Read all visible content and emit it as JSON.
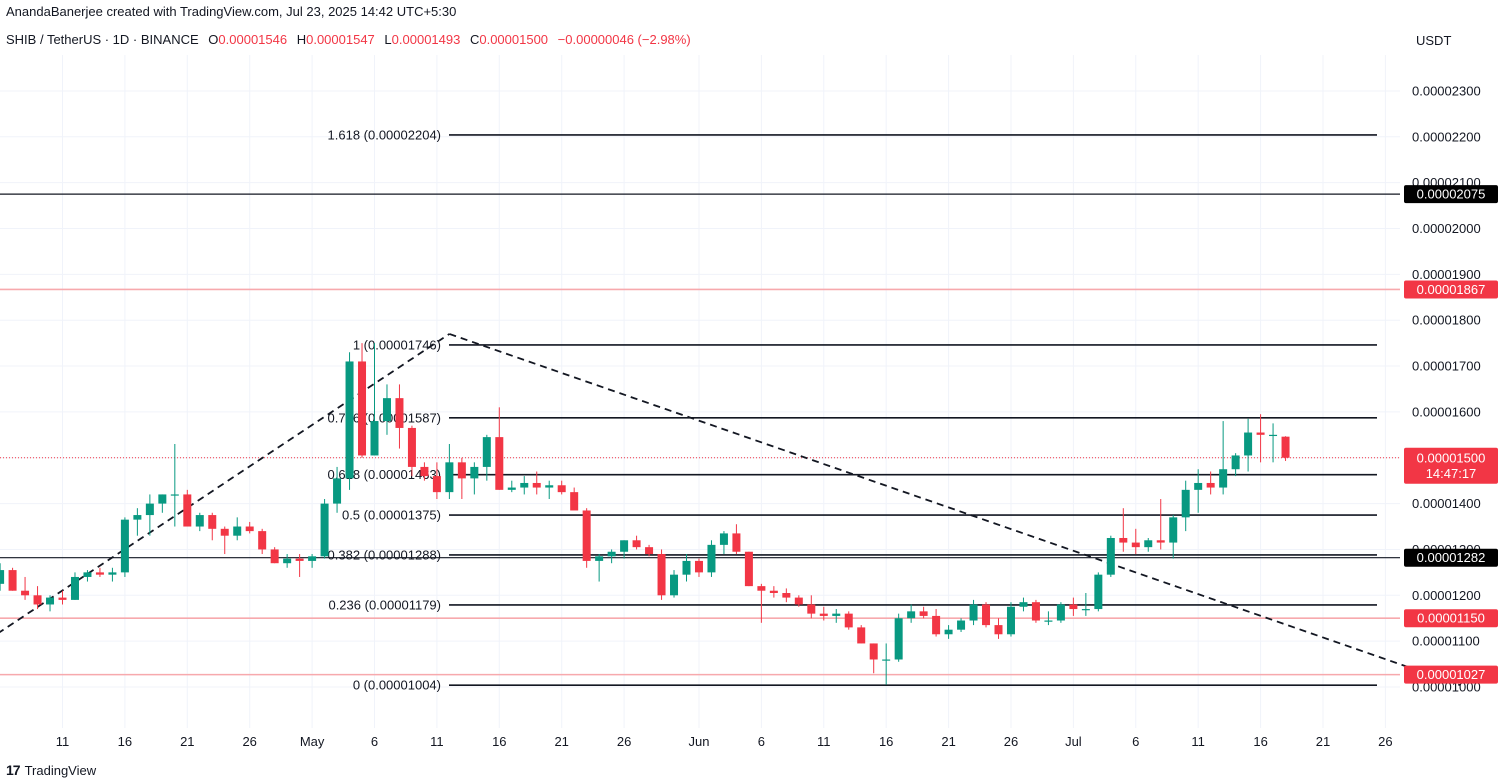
{
  "header": {
    "credit": "AnandaBanerjee created with TradingView.com, Jul 23, 2025 14:42 UTC+5:30"
  },
  "symbol_bar": {
    "name": "SHIB / TetherUS · 1D · BINANCE",
    "open_label": "O",
    "open": "0.00001546",
    "high_label": "H",
    "high": "0.00001547",
    "low_label": "L",
    "low": "0.00001493",
    "close_label": "C",
    "close": "0.00001500",
    "change": "−0.00000046 (−2.98%)"
  },
  "currency": "USDT",
  "brand": {
    "logo": "17",
    "name": "TradingView"
  },
  "colors": {
    "up": "#089981",
    "down": "#f23645",
    "line": "#131722",
    "red_line": "#f7a9ad"
  },
  "chart_data": {
    "type": "candlestick",
    "y_axis": {
      "ticks": [
        "0.00002300",
        "0.00002200",
        "0.00002100",
        "0.00002000",
        "0.00001900",
        "0.00001800",
        "0.00001700",
        "0.00001600",
        "0.00001500",
        "0.00001400",
        "0.00001300",
        "0.00001200",
        "0.00001100",
        "0.00001000"
      ],
      "tick_values": [
        23,
        22,
        21,
        20,
        19,
        18,
        17,
        16,
        15,
        14,
        13,
        12,
        11,
        10
      ]
    },
    "x_axis": {
      "ticks": [
        {
          "label": "11",
          "day": 11
        },
        {
          "label": "16",
          "day": 16
        },
        {
          "label": "21",
          "day": 21
        },
        {
          "label": "26",
          "day": 26
        },
        {
          "label": "May",
          "day": 31
        },
        {
          "label": "6",
          "day": 36
        },
        {
          "label": "11",
          "day": 41
        },
        {
          "label": "16",
          "day": 46
        },
        {
          "label": "21",
          "day": 51
        },
        {
          "label": "26",
          "day": 56
        },
        {
          "label": "Jun",
          "day": 62
        },
        {
          "label": "6",
          "day": 67
        },
        {
          "label": "11",
          "day": 72
        },
        {
          "label": "16",
          "day": 77
        },
        {
          "label": "21",
          "day": 82
        },
        {
          "label": "26",
          "day": 87
        },
        {
          "label": "Jul",
          "day": 92
        },
        {
          "label": "6",
          "day": 97
        },
        {
          "label": "11",
          "day": 102
        },
        {
          "label": "16",
          "day": 107
        },
        {
          "label": "21",
          "day": 112
        },
        {
          "label": "26",
          "day": 117
        }
      ]
    },
    "fib_levels": [
      {
        "label": "1.618 (0.00002204)",
        "value": 22.04
      },
      {
        "label": "1 (0.00001746)",
        "value": 17.46
      },
      {
        "label": "0.786 (0.00001587)",
        "value": 15.87
      },
      {
        "label": "0.618 (0.00001463)",
        "value": 14.63
      },
      {
        "label": "0.5 (0.00001375)",
        "value": 13.75
      },
      {
        "label": "0.382 (0.00001288)",
        "value": 12.88
      },
      {
        "label": "0.236 (0.00001179)",
        "value": 11.79
      },
      {
        "label": "0 (0.00001004)",
        "value": 10.04
      }
    ],
    "horizontal_lines": [
      {
        "value": 20.75,
        "badge": "0.00002075",
        "style": "black"
      },
      {
        "value": 18.67,
        "badge": "0.00001867",
        "style": "red"
      },
      {
        "value": 12.82,
        "badge": "0.00001282",
        "style": "black"
      },
      {
        "value": 11.5,
        "badge": "0.00001150",
        "style": "red"
      },
      {
        "value": 10.27,
        "badge": "0.00001027",
        "style": "red"
      }
    ],
    "current_price": {
      "value": 15.0,
      "badge": "0.00001500",
      "countdown": "14:47:17"
    },
    "trendlines": [
      {
        "from": {
          "day": 1,
          "value": 10.3
        },
        "to": {
          "day": 42,
          "value": 17.7
        }
      },
      {
        "from": {
          "day": 42,
          "value": 17.7
        },
        "to": {
          "day": 123,
          "value": 10.04
        }
      }
    ],
    "candles": [
      {
        "d": 1,
        "o": 11.3,
        "h": 11.9,
        "l": 10.4,
        "c": 11.35
      },
      {
        "d": 2,
        "o": 11.35,
        "h": 11.5,
        "l": 10.7,
        "c": 10.7
      },
      {
        "d": 3,
        "o": 10.7,
        "h": 11.95,
        "l": 10.3,
        "c": 11.95
      },
      {
        "d": 4,
        "o": 11.95,
        "h": 12.2,
        "l": 11.5,
        "c": 11.65
      },
      {
        "d": 5,
        "o": 11.65,
        "h": 12.3,
        "l": 11.6,
        "c": 12.25
      },
      {
        "d": 6,
        "o": 12.25,
        "h": 12.7,
        "l": 12.1,
        "c": 12.55
      },
      {
        "d": 7,
        "o": 12.55,
        "h": 12.6,
        "l": 12.1,
        "c": 12.1
      },
      {
        "d": 8,
        "o": 12.1,
        "h": 12.4,
        "l": 11.9,
        "c": 12.0
      },
      {
        "d": 9,
        "o": 12.0,
        "h": 12.2,
        "l": 11.7,
        "c": 11.8
      },
      {
        "d": 10,
        "o": 11.8,
        "h": 12.0,
        "l": 11.65,
        "c": 11.95
      },
      {
        "d": 11,
        "o": 11.95,
        "h": 12.1,
        "l": 11.8,
        "c": 11.9
      },
      {
        "d": 12,
        "o": 11.9,
        "h": 12.5,
        "l": 11.9,
        "c": 12.4
      },
      {
        "d": 13,
        "o": 12.4,
        "h": 12.55,
        "l": 12.3,
        "c": 12.5
      },
      {
        "d": 14,
        "o": 12.5,
        "h": 12.6,
        "l": 12.4,
        "c": 12.45
      },
      {
        "d": 15,
        "o": 12.45,
        "h": 12.6,
        "l": 12.3,
        "c": 12.5
      },
      {
        "d": 16,
        "o": 12.5,
        "h": 13.7,
        "l": 12.4,
        "c": 13.65
      },
      {
        "d": 17,
        "o": 13.65,
        "h": 13.9,
        "l": 13.3,
        "c": 13.75
      },
      {
        "d": 18,
        "o": 13.75,
        "h": 14.2,
        "l": 13.3,
        "c": 14.0
      },
      {
        "d": 19,
        "o": 14.0,
        "h": 14.2,
        "l": 13.8,
        "c": 14.2
      },
      {
        "d": 20,
        "o": 14.2,
        "h": 15.3,
        "l": 13.5,
        "c": 14.2
      },
      {
        "d": 21,
        "o": 14.2,
        "h": 14.3,
        "l": 13.5,
        "c": 13.5
      },
      {
        "d": 22,
        "o": 13.5,
        "h": 13.8,
        "l": 13.4,
        "c": 13.75
      },
      {
        "d": 23,
        "o": 13.75,
        "h": 13.8,
        "l": 13.2,
        "c": 13.45
      },
      {
        "d": 24,
        "o": 13.45,
        "h": 13.5,
        "l": 12.9,
        "c": 13.3
      },
      {
        "d": 25,
        "o": 13.3,
        "h": 13.7,
        "l": 13.2,
        "c": 13.5
      },
      {
        "d": 26,
        "o": 13.5,
        "h": 13.6,
        "l": 13.35,
        "c": 13.4
      },
      {
        "d": 27,
        "o": 13.4,
        "h": 13.45,
        "l": 12.9,
        "c": 13.0
      },
      {
        "d": 28,
        "o": 13.0,
        "h": 13.05,
        "l": 12.7,
        "c": 12.7
      },
      {
        "d": 29,
        "o": 12.7,
        "h": 12.9,
        "l": 12.6,
        "c": 12.8
      },
      {
        "d": 30,
        "o": 12.8,
        "h": 12.9,
        "l": 12.4,
        "c": 12.75
      },
      {
        "d": 31,
        "o": 12.75,
        "h": 12.9,
        "l": 12.6,
        "c": 12.85
      },
      {
        "d": 32,
        "o": 12.85,
        "h": 14.1,
        "l": 12.8,
        "c": 14.0
      },
      {
        "d": 33,
        "o": 14.0,
        "h": 14.8,
        "l": 13.8,
        "c": 14.55
      },
      {
        "d": 34,
        "o": 14.55,
        "h": 17.3,
        "l": 14.3,
        "c": 17.1
      },
      {
        "d": 35,
        "o": 17.1,
        "h": 17.5,
        "l": 15.0,
        "c": 15.05
      },
      {
        "d": 36,
        "o": 15.05,
        "h": 17.5,
        "l": 15.05,
        "c": 15.8
      },
      {
        "d": 37,
        "o": 15.8,
        "h": 16.6,
        "l": 15.5,
        "c": 16.3
      },
      {
        "d": 38,
        "o": 16.3,
        "h": 16.6,
        "l": 15.2,
        "c": 15.65
      },
      {
        "d": 39,
        "o": 15.65,
        "h": 15.7,
        "l": 14.6,
        "c": 14.8
      },
      {
        "d": 40,
        "o": 14.8,
        "h": 14.9,
        "l": 14.5,
        "c": 14.6
      },
      {
        "d": 41,
        "o": 14.6,
        "h": 14.9,
        "l": 14.1,
        "c": 14.25
      },
      {
        "d": 42,
        "o": 14.25,
        "h": 15.3,
        "l": 14.1,
        "c": 14.9
      },
      {
        "d": 43,
        "o": 14.9,
        "h": 15.0,
        "l": 14.1,
        "c": 14.55
      },
      {
        "d": 44,
        "o": 14.55,
        "h": 14.9,
        "l": 14.2,
        "c": 14.8
      },
      {
        "d": 45,
        "o": 14.8,
        "h": 15.5,
        "l": 14.5,
        "c": 15.45
      },
      {
        "d": 46,
        "o": 15.45,
        "h": 16.1,
        "l": 14.3,
        "c": 14.3
      },
      {
        "d": 47,
        "o": 14.3,
        "h": 14.5,
        "l": 14.25,
        "c": 14.35
      },
      {
        "d": 48,
        "o": 14.35,
        "h": 14.6,
        "l": 14.2,
        "c": 14.45
      },
      {
        "d": 49,
        "o": 14.45,
        "h": 14.7,
        "l": 14.2,
        "c": 14.35
      },
      {
        "d": 50,
        "o": 14.35,
        "h": 14.5,
        "l": 14.1,
        "c": 14.4
      },
      {
        "d": 51,
        "o": 14.4,
        "h": 14.5,
        "l": 14.2,
        "c": 14.25
      },
      {
        "d": 52,
        "o": 14.25,
        "h": 14.35,
        "l": 13.9,
        "c": 13.85
      },
      {
        "d": 53,
        "o": 13.85,
        "h": 13.9,
        "l": 12.6,
        "c": 12.75
      },
      {
        "d": 54,
        "o": 12.75,
        "h": 12.9,
        "l": 12.3,
        "c": 12.85
      },
      {
        "d": 55,
        "o": 12.85,
        "h": 13.0,
        "l": 12.7,
        "c": 12.95
      },
      {
        "d": 56,
        "o": 12.95,
        "h": 13.2,
        "l": 12.8,
        "c": 13.2
      },
      {
        "d": 57,
        "o": 13.2,
        "h": 13.3,
        "l": 13.0,
        "c": 13.05
      },
      {
        "d": 58,
        "o": 13.05,
        "h": 13.1,
        "l": 12.85,
        "c": 12.9
      },
      {
        "d": 59,
        "o": 12.9,
        "h": 13.0,
        "l": 11.9,
        "c": 12.0
      },
      {
        "d": 60,
        "o": 12.0,
        "h": 12.55,
        "l": 11.95,
        "c": 12.45
      },
      {
        "d": 61,
        "o": 12.45,
        "h": 12.9,
        "l": 12.3,
        "c": 12.75
      },
      {
        "d": 62,
        "o": 12.75,
        "h": 12.8,
        "l": 12.4,
        "c": 12.5
      },
      {
        "d": 63,
        "o": 12.5,
        "h": 13.2,
        "l": 12.4,
        "c": 13.1
      },
      {
        "d": 64,
        "o": 13.1,
        "h": 13.4,
        "l": 12.9,
        "c": 13.35
      },
      {
        "d": 65,
        "o": 13.35,
        "h": 13.55,
        "l": 12.9,
        "c": 12.95
      },
      {
        "d": 66,
        "o": 12.95,
        "h": 12.95,
        "l": 12.2,
        "c": 12.2
      },
      {
        "d": 67,
        "o": 12.2,
        "h": 12.25,
        "l": 11.4,
        "c": 12.1
      },
      {
        "d": 68,
        "o": 12.1,
        "h": 12.2,
        "l": 11.95,
        "c": 12.05
      },
      {
        "d": 69,
        "o": 12.05,
        "h": 12.15,
        "l": 11.85,
        "c": 11.95
      },
      {
        "d": 70,
        "o": 11.95,
        "h": 12.0,
        "l": 11.75,
        "c": 11.8
      },
      {
        "d": 71,
        "o": 11.8,
        "h": 12.0,
        "l": 11.5,
        "c": 11.6
      },
      {
        "d": 72,
        "o": 11.6,
        "h": 11.75,
        "l": 11.45,
        "c": 11.55
      },
      {
        "d": 73,
        "o": 11.55,
        "h": 11.7,
        "l": 11.4,
        "c": 11.6
      },
      {
        "d": 74,
        "o": 11.6,
        "h": 11.65,
        "l": 11.25,
        "c": 11.3
      },
      {
        "d": 75,
        "o": 11.3,
        "h": 11.35,
        "l": 10.95,
        "c": 10.95
      },
      {
        "d": 76,
        "o": 10.95,
        "h": 10.95,
        "l": 10.3,
        "c": 10.6
      },
      {
        "d": 77,
        "o": 10.6,
        "h": 10.95,
        "l": 10.05,
        "c": 10.6
      },
      {
        "d": 78,
        "o": 10.6,
        "h": 11.6,
        "l": 10.55,
        "c": 11.5
      },
      {
        "d": 79,
        "o": 11.5,
        "h": 11.8,
        "l": 11.4,
        "c": 11.65
      },
      {
        "d": 80,
        "o": 11.65,
        "h": 11.75,
        "l": 11.5,
        "c": 11.55
      },
      {
        "d": 81,
        "o": 11.55,
        "h": 11.7,
        "l": 11.1,
        "c": 11.15
      },
      {
        "d": 82,
        "o": 11.15,
        "h": 11.35,
        "l": 11.05,
        "c": 11.25
      },
      {
        "d": 83,
        "o": 11.25,
        "h": 11.5,
        "l": 11.2,
        "c": 11.45
      },
      {
        "d": 84,
        "o": 11.45,
        "h": 11.9,
        "l": 11.35,
        "c": 11.8
      },
      {
        "d": 85,
        "o": 11.8,
        "h": 11.85,
        "l": 11.3,
        "c": 11.35
      },
      {
        "d": 86,
        "o": 11.35,
        "h": 11.5,
        "l": 11.05,
        "c": 11.15
      },
      {
        "d": 87,
        "o": 11.15,
        "h": 11.85,
        "l": 11.1,
        "c": 11.75
      },
      {
        "d": 88,
        "o": 11.75,
        "h": 11.95,
        "l": 11.65,
        "c": 11.85
      },
      {
        "d": 89,
        "o": 11.85,
        "h": 11.9,
        "l": 11.4,
        "c": 11.45
      },
      {
        "d": 90,
        "o": 11.45,
        "h": 11.65,
        "l": 11.35,
        "c": 11.45
      },
      {
        "d": 91,
        "o": 11.45,
        "h": 11.85,
        "l": 11.4,
        "c": 11.8
      },
      {
        "d": 92,
        "o": 11.8,
        "h": 11.95,
        "l": 11.55,
        "c": 11.7
      },
      {
        "d": 93,
        "o": 11.7,
        "h": 12.05,
        "l": 11.55,
        "c": 11.7
      },
      {
        "d": 94,
        "o": 11.7,
        "h": 12.5,
        "l": 11.65,
        "c": 12.45
      },
      {
        "d": 95,
        "o": 12.45,
        "h": 13.3,
        "l": 12.4,
        "c": 13.25
      },
      {
        "d": 96,
        "o": 13.25,
        "h": 13.9,
        "l": 12.95,
        "c": 13.15
      },
      {
        "d": 97,
        "o": 13.15,
        "h": 13.45,
        "l": 12.9,
        "c": 13.05
      },
      {
        "d": 98,
        "o": 13.05,
        "h": 13.25,
        "l": 12.95,
        "c": 13.2
      },
      {
        "d": 99,
        "o": 13.2,
        "h": 14.1,
        "l": 13.0,
        "c": 13.15
      },
      {
        "d": 100,
        "o": 13.15,
        "h": 13.75,
        "l": 12.8,
        "c": 13.7
      },
      {
        "d": 101,
        "o": 13.7,
        "h": 14.5,
        "l": 13.4,
        "c": 14.3
      },
      {
        "d": 102,
        "o": 14.3,
        "h": 14.75,
        "l": 13.8,
        "c": 14.45
      },
      {
        "d": 103,
        "o": 14.45,
        "h": 14.7,
        "l": 14.2,
        "c": 14.35
      },
      {
        "d": 104,
        "o": 14.35,
        "h": 15.8,
        "l": 14.2,
        "c": 14.75
      },
      {
        "d": 105,
        "o": 14.75,
        "h": 15.1,
        "l": 14.6,
        "c": 15.05
      },
      {
        "d": 106,
        "o": 15.05,
        "h": 15.85,
        "l": 14.7,
        "c": 15.55
      },
      {
        "d": 107,
        "o": 15.55,
        "h": 15.95,
        "l": 14.9,
        "c": 15.5
      },
      {
        "d": 108,
        "o": 15.5,
        "h": 15.75,
        "l": 14.9,
        "c": 15.5
      },
      {
        "d": 109,
        "o": 15.46,
        "h": 15.47,
        "l": 14.93,
        "c": 15.0
      }
    ]
  }
}
